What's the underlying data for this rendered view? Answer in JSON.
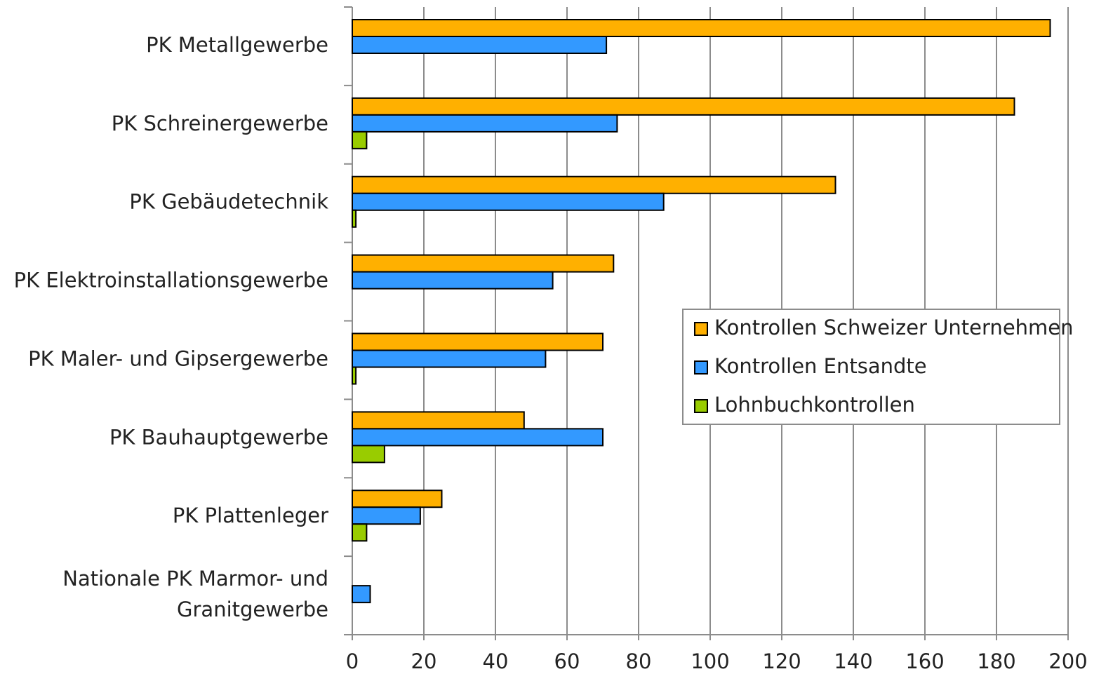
{
  "chart_data": {
    "type": "hbar",
    "categories": [
      "PK Metallgewerbe",
      "PK Schreinergewerbe",
      "PK Gebäudetechnik",
      "PK Elektroinstallationsgewerbe",
      "PK Maler- und Gipsergewerbe",
      "PK Bauhauptgewerbe",
      "PK Plattenleger",
      "Nationale PK Marmor- und\nGranitgewerbe"
    ],
    "series": [
      {
        "name": "Kontrollen Schweizer Unternehmen",
        "color": "#FFB000",
        "values": [
          195,
          185,
          135,
          73,
          70,
          48,
          25,
          0
        ]
      },
      {
        "name": "Kontrollen Entsandte",
        "color": "#3399FF",
        "values": [
          71,
          74,
          87,
          56,
          54,
          70,
          19,
          5
        ]
      },
      {
        "name": "Lohnbuchkontrollen",
        "color": "#99CC00",
        "values": [
          0,
          4,
          1,
          0,
          1,
          9,
          4,
          0
        ]
      }
    ],
    "xlim": [
      0,
      200
    ],
    "xticks": [
      0,
      20,
      40,
      60,
      80,
      100,
      120,
      140,
      160,
      180,
      200
    ],
    "grid": true,
    "legend": "right"
  }
}
